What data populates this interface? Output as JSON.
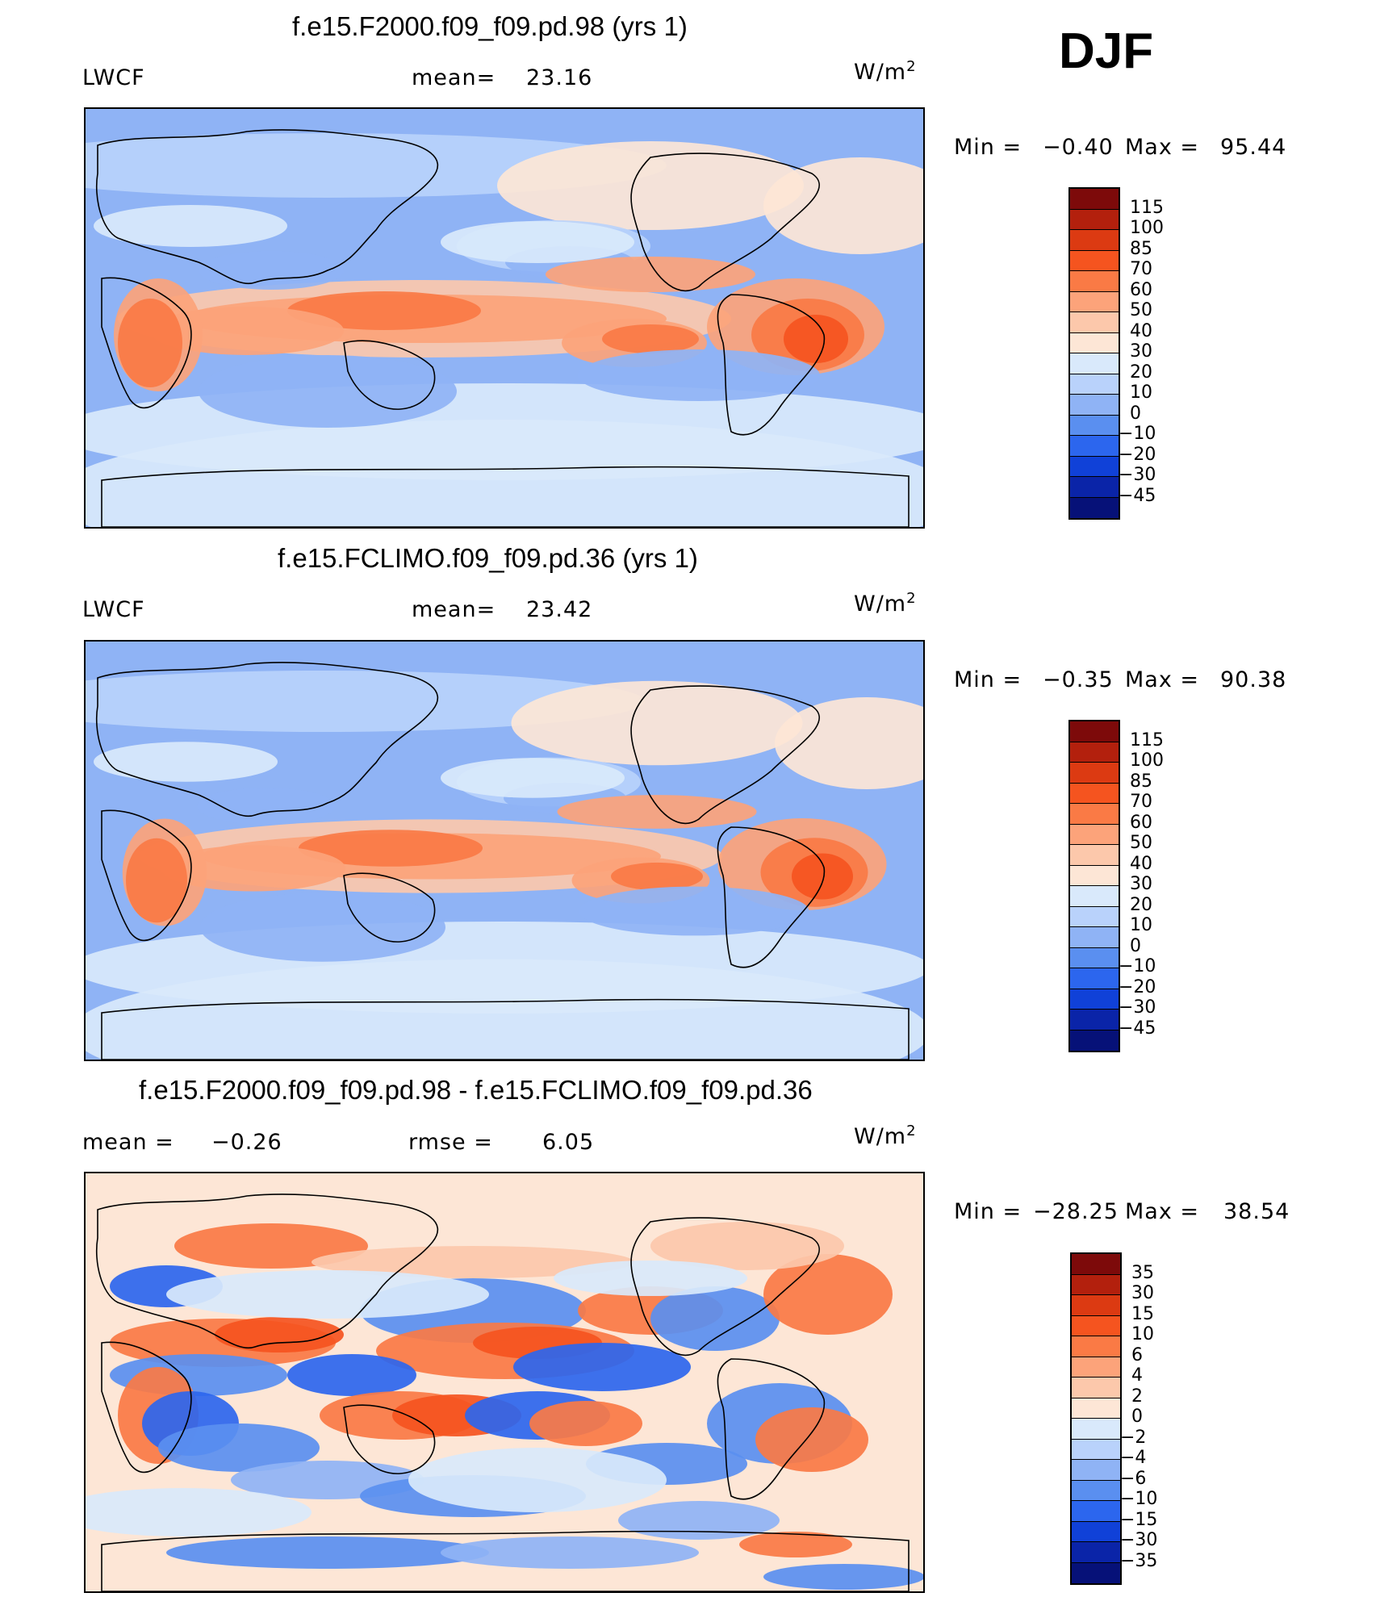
{
  "season": "DJF",
  "units_main": "W/m",
  "units_sup": "2",
  "panels": [
    {
      "title": "f.e15.F2000.f09_f09.pd.98 (yrs 1)",
      "variable": "LWCF",
      "stat1_label": "mean=",
      "stat1_value": "23.16",
      "min_label": "Min  =",
      "min_value": "−0.40",
      "max_label": "Max  =",
      "max_value": "95.44"
    },
    {
      "title": "f.e15.FCLIMO.f09_f09.pd.36 (yrs 1)",
      "variable": "LWCF",
      "stat1_label": "mean=",
      "stat1_value": "23.42",
      "min_label": "Min  =",
      "min_value": "−0.35",
      "max_label": "Max  =",
      "max_value": "90.38"
    },
    {
      "title": "f.e15.F2000.f09_f09.pd.98 - f.e15.FCLIMO.f09_f09.pd.36",
      "stat1_label": "mean  =",
      "stat1_value": "−0.26",
      "stat2_label": "rmse  =",
      "stat2_value": "6.05",
      "min_label": "Min  =",
      "min_value": "−28.25",
      "max_label": "Max  =",
      "max_value": "38.54"
    }
  ],
  "chart_data": [
    {
      "type": "heatmap",
      "title": "f.e15.F2000.f09_f09.pd.98 (yrs 1)",
      "field": "LWCF",
      "units": "W/m2",
      "mean": 23.16,
      "min": -0.4,
      "max": 95.44,
      "levels": [
        "115",
        "100",
        "85",
        "70",
        "60",
        "50",
        "40",
        "30",
        "20",
        "10",
        "0",
        "−10",
        "−20",
        "−30",
        "−45"
      ],
      "colors": [
        "#7d0a0a",
        "#b3200d",
        "#dc3a12",
        "#f5541f",
        "#fa7a45",
        "#fca37a",
        "#fcc8ab",
        "#fde6d6",
        "#d9e9fb",
        "#b9d2fb",
        "#8fb3f5",
        "#5a8ff0",
        "#2c66ee",
        "#1041d8",
        "#0a24a8",
        "#061178"
      ]
    },
    {
      "type": "heatmap",
      "title": "f.e15.FCLIMO.f09_f09.pd.36 (yrs 1)",
      "field": "LWCF",
      "units": "W/m2",
      "mean": 23.42,
      "min": -0.35,
      "max": 90.38,
      "levels": [
        "115",
        "100",
        "85",
        "70",
        "60",
        "50",
        "40",
        "30",
        "20",
        "10",
        "0",
        "−10",
        "−20",
        "−30",
        "−45"
      ],
      "colors": [
        "#7d0a0a",
        "#b3200d",
        "#dc3a12",
        "#f5541f",
        "#fa7a45",
        "#fca37a",
        "#fcc8ab",
        "#fde6d6",
        "#d9e9fb",
        "#b9d2fb",
        "#8fb3f5",
        "#5a8ff0",
        "#2c66ee",
        "#1041d8",
        "#0a24a8",
        "#061178"
      ]
    },
    {
      "type": "heatmap",
      "title": "f.e15.F2000.f09_f09.pd.98 - f.e15.FCLIMO.f09_f09.pd.36",
      "field": "LWCF difference",
      "units": "W/m2",
      "mean": -0.26,
      "rmse": 6.05,
      "min": -28.25,
      "max": 38.54,
      "levels": [
        "35",
        "30",
        "15",
        "10",
        "6",
        "4",
        "2",
        "0",
        "−2",
        "−4",
        "−6",
        "−10",
        "−15",
        "−30",
        "−35"
      ],
      "colors": [
        "#7d0a0a",
        "#b3200d",
        "#dc3a12",
        "#f5541f",
        "#fa7a45",
        "#fca37a",
        "#fcc8ab",
        "#fde6d6",
        "#d9e9fb",
        "#b9d2fb",
        "#8fb3f5",
        "#5a8ff0",
        "#2c66ee",
        "#1041d8",
        "#0a24a8",
        "#061178"
      ]
    }
  ]
}
